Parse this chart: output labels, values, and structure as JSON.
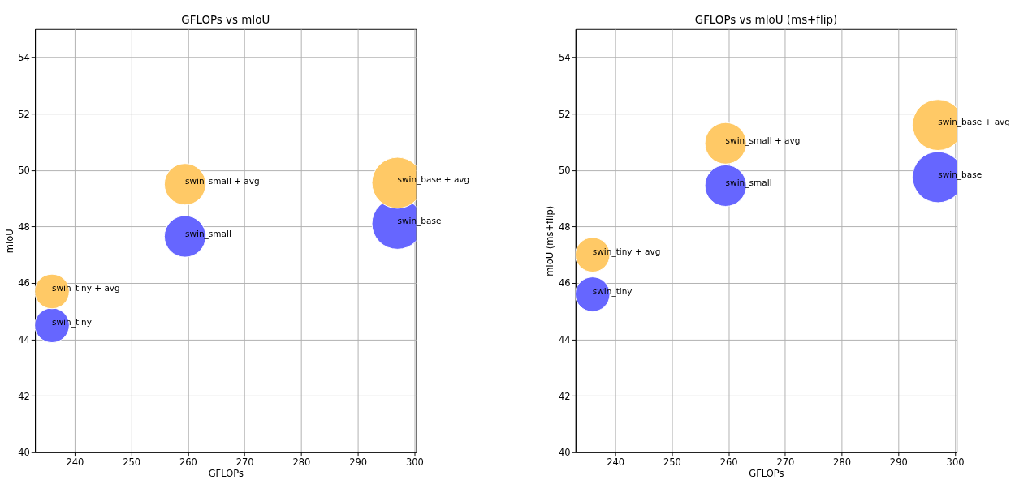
{
  "chart_data": [
    {
      "type": "bubble",
      "title": "GFLOPs vs mIoU",
      "xlabel": "GFLOPs",
      "ylabel": "mIoU",
      "x": [
        236,
        259.5,
        297
      ],
      "series": [
        {
          "color": "#6666ff",
          "values": [
            44.5,
            47.65,
            48.1
          ],
          "sizes": [
            0.46,
            0.66,
            1
          ]
        },
        {
          "color": "#ffc966",
          "values": [
            45.7,
            49.5,
            49.55
          ],
          "sizes": [
            0.46,
            0.66,
            1
          ]
        }
      ],
      "xlim": [
        233,
        300.3
      ],
      "ylim": [
        40,
        55
      ],
      "xticks": [
        240,
        250,
        260,
        270,
        280,
        290,
        300
      ],
      "yticks": [
        40,
        42,
        44,
        46,
        48,
        50,
        52,
        54
      ],
      "grid": true,
      "legend": false,
      "annotations": [
        {
          "text": "swin_tiny",
          "x": 236,
          "y": 44.5
        },
        {
          "text": "swin_small",
          "x": 259.5,
          "y": 47.65
        },
        {
          "text": "swin_base",
          "x": 297,
          "y": 48.1
        },
        {
          "text": "swin_tiny + avg",
          "x": 236,
          "y": 45.7
        },
        {
          "text": "swin_small + avg",
          "x": 259.5,
          "y": 49.5
        },
        {
          "text": "swin_base + avg",
          "x": 297,
          "y": 49.55
        }
      ]
    },
    {
      "type": "bubble",
      "title": "GFLOPs vs mIoU (ms+flip)",
      "xlabel": "GFLOPs",
      "ylabel": "mIoU (ms+flip)",
      "x": [
        236,
        259.5,
        297
      ],
      "series": [
        {
          "color": "#6666ff",
          "values": [
            45.6,
            49.45,
            49.75
          ],
          "sizes": [
            0.46,
            0.66,
            1
          ]
        },
        {
          "color": "#ffc966",
          "values": [
            47.0,
            50.95,
            51.6
          ],
          "sizes": [
            0.46,
            0.66,
            1
          ]
        }
      ],
      "xlim": [
        233,
        300.3
      ],
      "ylim": [
        40,
        55
      ],
      "xticks": [
        240,
        250,
        260,
        270,
        280,
        290,
        300
      ],
      "yticks": [
        40,
        42,
        44,
        46,
        48,
        50,
        52,
        54
      ],
      "grid": true,
      "legend": false,
      "annotations": [
        {
          "text": "swin_tiny",
          "x": 236,
          "y": 45.6
        },
        {
          "text": "swin_small",
          "x": 259.5,
          "y": 49.45
        },
        {
          "text": "swin_base",
          "x": 297,
          "y": 49.75
        },
        {
          "text": "swin_tiny + avg",
          "x": 236,
          "y": 47.0
        },
        {
          "text": "swin_small + avg",
          "x": 259.5,
          "y": 50.95
        },
        {
          "text": "swin_base + avg",
          "x": 297,
          "y": 51.6
        }
      ]
    }
  ]
}
